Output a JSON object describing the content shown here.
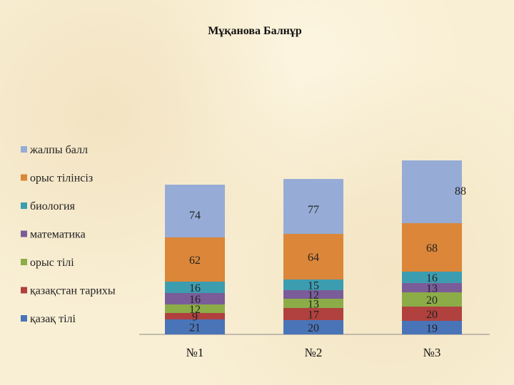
{
  "chart_data": {
    "type": "bar",
    "stacked": true,
    "title": "Мұқанова Балнұр",
    "xlabel": "",
    "ylabel": "",
    "categories": [
      "№1",
      "№2",
      "№3"
    ],
    "series": [
      {
        "name": "қазақ тілі",
        "values": [
          21,
          20,
          19
        ],
        "color": "#4a74b8"
      },
      {
        "name": "қазақстан тарихы",
        "values": [
          9,
          17,
          20
        ],
        "color": "#b0413e"
      },
      {
        "name": "орыс тілі",
        "values": [
          12,
          13,
          20
        ],
        "color": "#8cac48"
      },
      {
        "name": "математика",
        "values": [
          16,
          12,
          13
        ],
        "color": "#7a5c99"
      },
      {
        "name": "биология",
        "values": [
          16,
          15,
          16
        ],
        "color": "#3c9db0"
      },
      {
        "name": "орыс тілінсіз",
        "values": [
          62,
          64,
          68
        ],
        "color": "#dc8639"
      },
      {
        "name": "жалпы балл",
        "values": [
          74,
          77,
          88
        ],
        "color": "#96acd6"
      }
    ],
    "legend_position": "left",
    "grid": false
  }
}
